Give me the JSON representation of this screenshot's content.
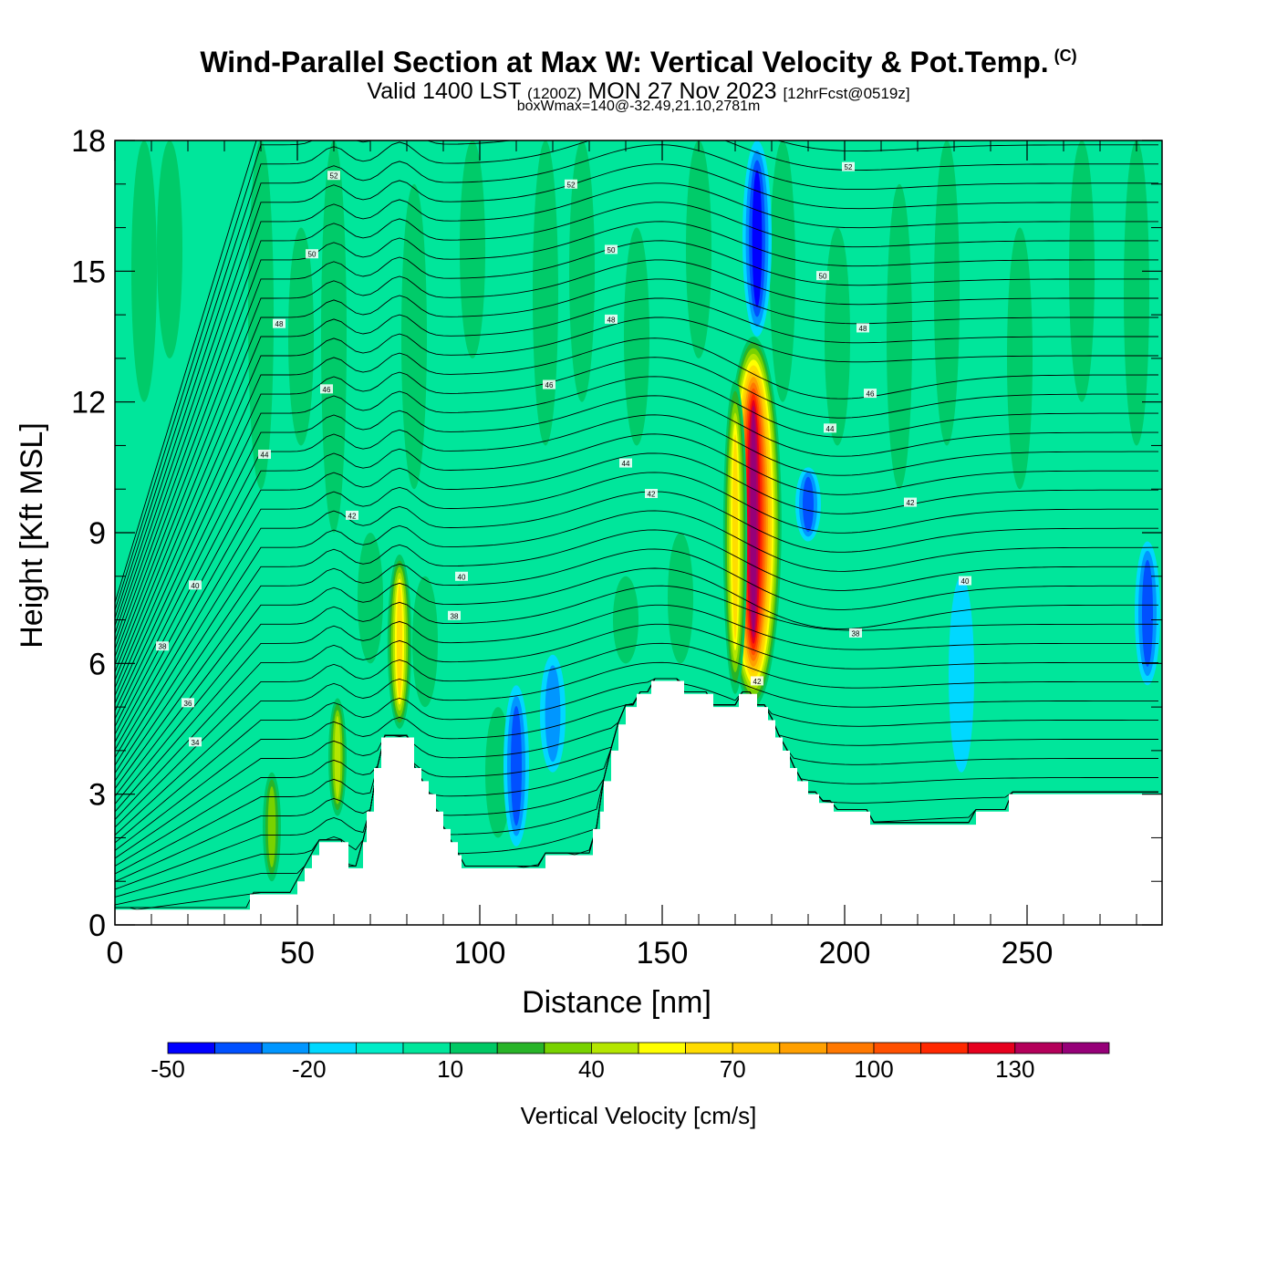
{
  "title": {
    "main": "Wind-Parallel Section at Max W: Vertical Velocity & Pot.Temp.",
    "copyright": "(C)",
    "valid_prefix": "Valid 1400 LST",
    "valid_utc": "(1200Z)",
    "valid_date": "MON 27 Nov 2023",
    "forecast": "[12hrFcst@0519z]",
    "boxwmax": "boxWmax=140@-32.49,21.10,2781m"
  },
  "chart_data": {
    "type": "heatmap",
    "xlabel": "Distance [nm]",
    "ylabel": "Height [Kft MSL]",
    "xlim": [
      0,
      287
    ],
    "ylim": [
      0,
      18
    ],
    "x_ticks": [
      0,
      50,
      100,
      150,
      200,
      250
    ],
    "y_ticks": [
      0,
      3,
      6,
      9,
      12,
      15,
      18
    ],
    "grid": false,
    "terrain_profile": [
      [
        0,
        0.35
      ],
      [
        36,
        0.35
      ],
      [
        37,
        0.7
      ],
      [
        49,
        0.7
      ],
      [
        50,
        1.0
      ],
      [
        52,
        1.3
      ],
      [
        54,
        1.6
      ],
      [
        56,
        1.9
      ],
      [
        63,
        1.9
      ],
      [
        64,
        1.3
      ],
      [
        67,
        1.3
      ],
      [
        68,
        1.9
      ],
      [
        69,
        2.6
      ],
      [
        71,
        3.6
      ],
      [
        73,
        4.3
      ],
      [
        79,
        4.3
      ],
      [
        82,
        3.6
      ],
      [
        84,
        3.3
      ],
      [
        86,
        3.0
      ],
      [
        88,
        2.6
      ],
      [
        90,
        2.2
      ],
      [
        92,
        1.9
      ],
      [
        94,
        1.6
      ],
      [
        95,
        1.3
      ],
      [
        117,
        1.3
      ],
      [
        118,
        1.6
      ],
      [
        129,
        1.6
      ],
      [
        131,
        2.2
      ],
      [
        133,
        2.6
      ],
      [
        134,
        3.3
      ],
      [
        136,
        4.0
      ],
      [
        138,
        4.6
      ],
      [
        140,
        5.0
      ],
      [
        143,
        5.3
      ],
      [
        147,
        5.6
      ],
      [
        155,
        5.6
      ],
      [
        156,
        5.3
      ],
      [
        163,
        5.3
      ],
      [
        164,
        5.0
      ],
      [
        170,
        5.0
      ],
      [
        171,
        5.3
      ],
      [
        175,
        5.3
      ],
      [
        176,
        5.0
      ],
      [
        179,
        4.7
      ],
      [
        181,
        4.3
      ],
      [
        183,
        4.0
      ],
      [
        185,
        3.6
      ],
      [
        187,
        3.3
      ],
      [
        190,
        3.0
      ],
      [
        193,
        2.8
      ],
      [
        197,
        2.6
      ],
      [
        206,
        2.6
      ],
      [
        207,
        2.3
      ],
      [
        235,
        2.3
      ],
      [
        236,
        2.6
      ],
      [
        244,
        2.6
      ],
      [
        245,
        3.0
      ],
      [
        287,
        3.0
      ]
    ],
    "w_features": [
      {
        "x": 175,
        "y0": 5.0,
        "y1": 13.5,
        "peak": 140
      },
      {
        "x": 170,
        "y0": 5.3,
        "y1": 12.5,
        "peak": 60
      },
      {
        "x": 78,
        "y0": 4.5,
        "y1": 8.5,
        "peak": 60
      },
      {
        "x": 61,
        "y0": 2.5,
        "y1": 5.2,
        "peak": 45
      },
      {
        "x": 43,
        "y0": 1.0,
        "y1": 3.5,
        "peak": 35
      },
      {
        "x": 176,
        "y0": 13.5,
        "y1": 18,
        "peak": -40
      },
      {
        "x": 110,
        "y0": 1.8,
        "y1": 5.5,
        "peak": -35
      },
      {
        "x": 283,
        "y0": 5.5,
        "y1": 8.8,
        "peak": -30
      },
      {
        "x": 190,
        "y0": 8.8,
        "y1": 10.5,
        "peak": -30
      },
      {
        "x": 120,
        "y0": 3.5,
        "y1": 6.2,
        "peak": -20
      },
      {
        "x": 232,
        "y0": 3.5,
        "y1": 8.0,
        "peak": -15
      }
    ],
    "theta_contour_labels": [
      {
        "value": "34",
        "x": 22,
        "y": 4.2
      },
      {
        "value": "36",
        "x": 20,
        "y": 5.1
      },
      {
        "value": "38",
        "x": 13,
        "y": 6.4
      },
      {
        "value": "40",
        "x": 22,
        "y": 7.8
      },
      {
        "value": "42",
        "x": 65,
        "y": 9.4
      },
      {
        "value": "44",
        "x": 41,
        "y": 10.8
      },
      {
        "value": "46",
        "x": 58,
        "y": 12.3
      },
      {
        "value": "48",
        "x": 45,
        "y": 13.8
      },
      {
        "value": "50",
        "x": 54,
        "y": 15.4
      },
      {
        "value": "52",
        "x": 60,
        "y": 17.2
      },
      {
        "value": "52",
        "x": 125,
        "y": 17.0
      },
      {
        "value": "50",
        "x": 136,
        "y": 15.5
      },
      {
        "value": "48",
        "x": 136,
        "y": 13.9
      },
      {
        "value": "46",
        "x": 119,
        "y": 12.4
      },
      {
        "value": "44",
        "x": 140,
        "y": 10.6
      },
      {
        "value": "42",
        "x": 147,
        "y": 9.9
      },
      {
        "value": "40",
        "x": 95,
        "y": 8.0
      },
      {
        "value": "38",
        "x": 93,
        "y": 7.1
      },
      {
        "value": "52",
        "x": 201,
        "y": 17.4
      },
      {
        "value": "50",
        "x": 194,
        "y": 14.9
      },
      {
        "value": "48",
        "x": 205,
        "y": 13.7
      },
      {
        "value": "46",
        "x": 207,
        "y": 12.2
      },
      {
        "value": "44",
        "x": 196,
        "y": 11.4
      },
      {
        "value": "42",
        "x": 218,
        "y": 9.7
      },
      {
        "value": "40",
        "x": 233,
        "y": 7.9
      },
      {
        "value": "38",
        "x": 203,
        "y": 6.7
      },
      {
        "value": "42",
        "x": 176,
        "y": 5.6
      }
    ],
    "colorbar": {
      "label": "Vertical Velocity [cm/s]",
      "tick_labels": [
        "-50",
        "-20",
        "10",
        "40",
        "70",
        "100",
        "130"
      ],
      "tick_values": [
        -50,
        -20,
        10,
        40,
        70,
        100,
        130
      ],
      "levels": [
        -50,
        -40,
        -30,
        -20,
        -10,
        0,
        10,
        20,
        30,
        40,
        50,
        60,
        70,
        80,
        90,
        100,
        110,
        120,
        130,
        140,
        150
      ],
      "colors": [
        "#0000ff",
        "#0050ff",
        "#0096ff",
        "#00d8ff",
        "#00ecc8",
        "#00e69b",
        "#00c864",
        "#28b428",
        "#78d200",
        "#b4e600",
        "#ffff00",
        "#ffdc00",
        "#ffc800",
        "#ffa000",
        "#ff7800",
        "#ff5000",
        "#ff2800",
        "#e6001e",
        "#b4005a",
        "#960078"
      ]
    }
  }
}
